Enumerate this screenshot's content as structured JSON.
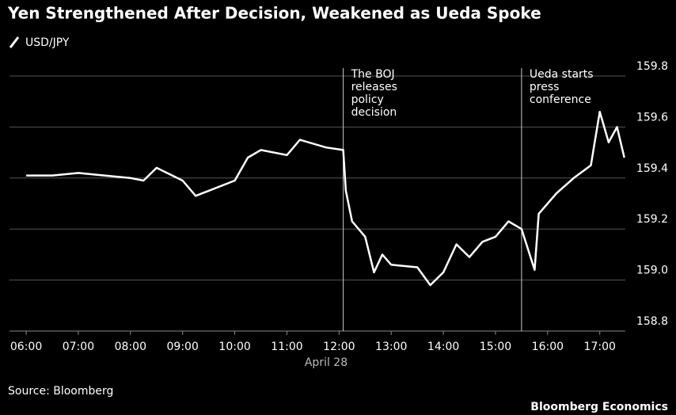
{
  "chart_data": {
    "type": "line",
    "title": "Yen Strengthened After Decision, Weakened as Ueda Spoke",
    "x_label": "April 28",
    "source": "Source: Bloomberg",
    "credit": "Bloomberg Economics",
    "series": [
      {
        "name": "USD/JPY",
        "color": "#ffffff",
        "x": [
          6.0,
          6.5,
          7.0,
          7.5,
          8.0,
          8.25,
          8.5,
          9.0,
          9.25,
          9.5,
          10.0,
          10.25,
          10.5,
          11.0,
          11.25,
          11.75,
          12.08,
          12.13,
          12.25,
          12.5,
          12.67,
          12.83,
          13.0,
          13.5,
          13.75,
          14.0,
          14.25,
          14.5,
          14.75,
          15.0,
          15.25,
          15.5,
          15.75,
          15.83,
          16.17,
          16.5,
          16.83,
          17.0,
          17.17,
          17.33,
          17.47
        ],
        "values": [
          159.41,
          159.41,
          159.42,
          159.41,
          159.4,
          159.39,
          159.44,
          159.39,
          159.33,
          159.35,
          159.39,
          159.48,
          159.51,
          159.49,
          159.55,
          159.52,
          159.51,
          159.35,
          159.23,
          159.17,
          159.03,
          159.1,
          159.06,
          159.05,
          158.98,
          159.03,
          159.14,
          159.09,
          159.15,
          159.17,
          159.23,
          159.2,
          159.04,
          159.26,
          159.34,
          159.4,
          159.45,
          159.66,
          159.54,
          159.6,
          159.48
        ]
      }
    ],
    "xlim": [
      5.68,
      17.49
    ],
    "xticks": [
      {
        "value": 6,
        "label": "06:00"
      },
      {
        "value": 7,
        "label": "07:00"
      },
      {
        "value": 8,
        "label": "08:00"
      },
      {
        "value": 9,
        "label": "09:00"
      },
      {
        "value": 10,
        "label": "10:00"
      },
      {
        "value": 11,
        "label": "11:00"
      },
      {
        "value": 12,
        "label": "12:00"
      },
      {
        "value": 13,
        "label": "13:00"
      },
      {
        "value": 14,
        "label": "14:00"
      },
      {
        "value": 15,
        "label": "15:00"
      },
      {
        "value": 16,
        "label": "16:00"
      },
      {
        "value": 17,
        "label": "17:00"
      }
    ],
    "ylim": [
      158.8,
      159.8
    ],
    "yticks": [
      {
        "value": 158.8,
        "label": "158.8"
      },
      {
        "value": 159.0,
        "label": "159.0"
      },
      {
        "value": 159.2,
        "label": "159.2"
      },
      {
        "value": 159.4,
        "label": "159.4"
      },
      {
        "value": 159.6,
        "label": "159.6"
      },
      {
        "value": 159.8,
        "label": "159.8"
      }
    ],
    "grid": true,
    "annotations": [
      {
        "x": 12.08,
        "lines": [
          "The BOJ",
          "releases",
          "policy",
          "decision"
        ]
      },
      {
        "x": 15.5,
        "lines": [
          "Ueda starts",
          "press",
          "conference"
        ]
      }
    ]
  }
}
